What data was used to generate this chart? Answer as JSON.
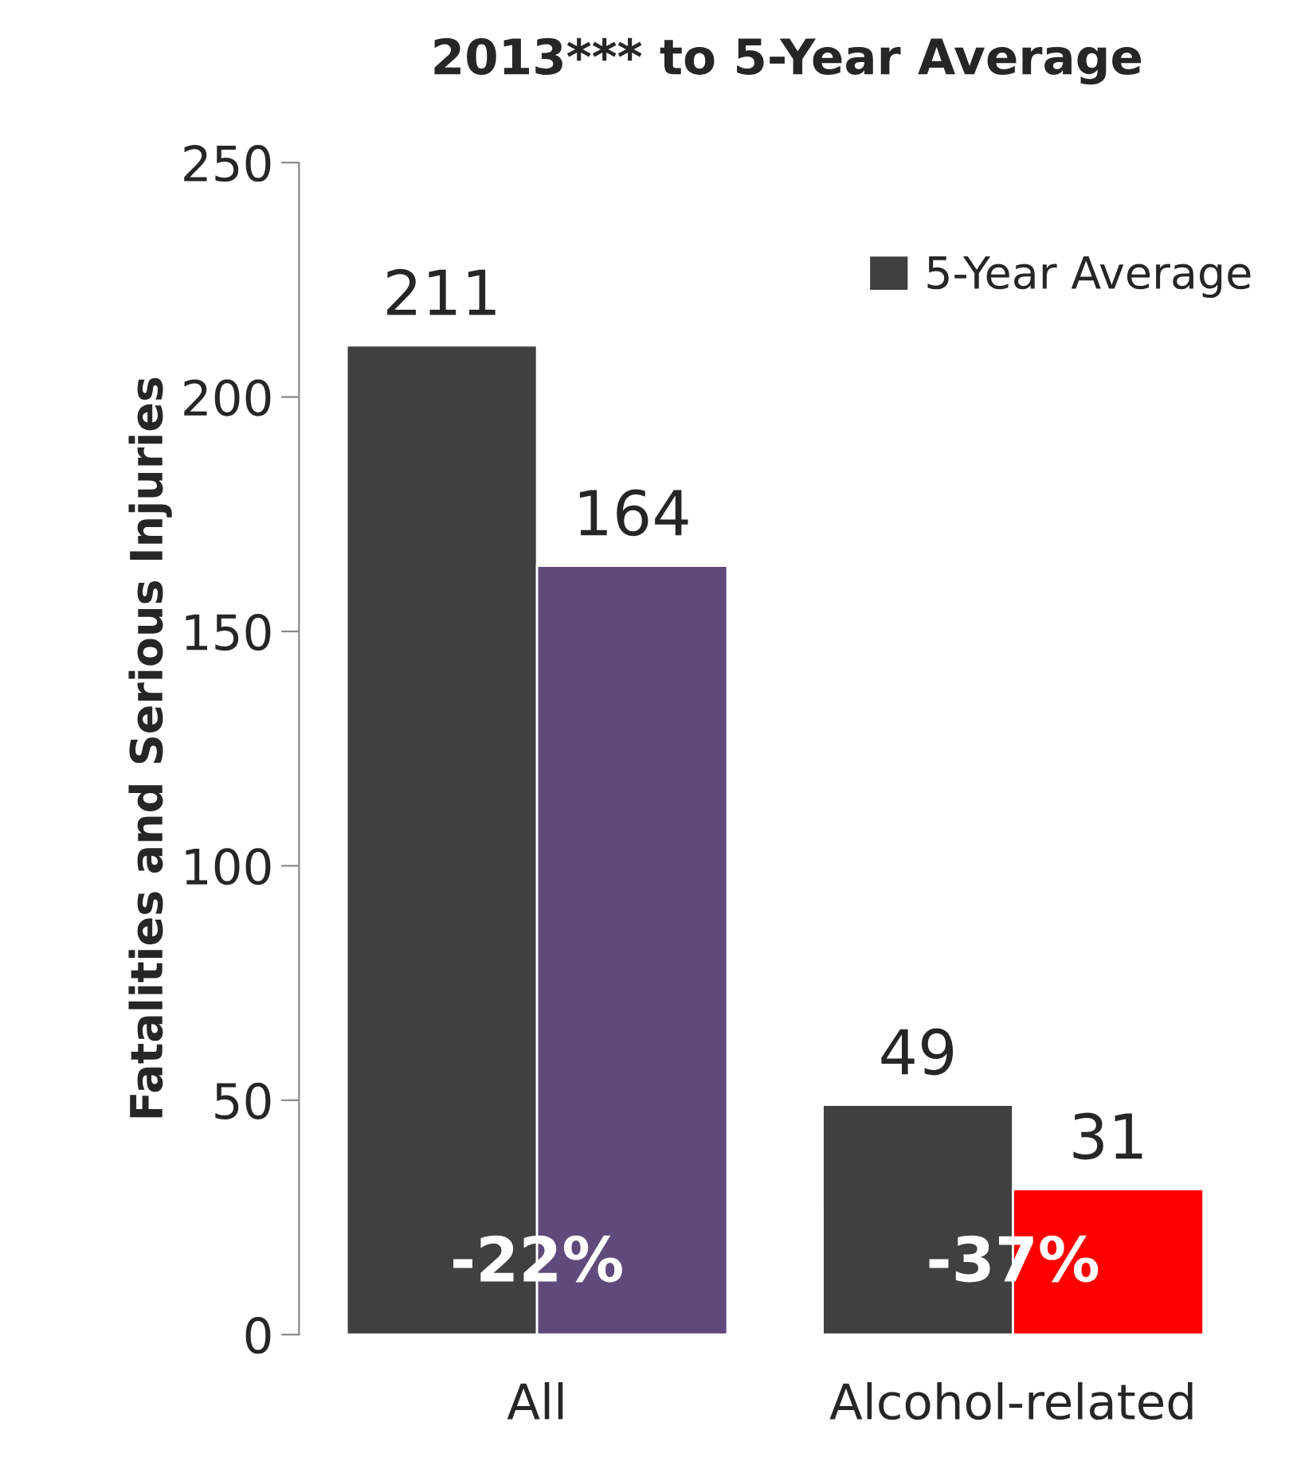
{
  "chart_data": {
    "type": "bar",
    "title": "2013*** to 5-Year Average",
    "ylabel": "Fatalities and Serious Injuries",
    "categories": [
      "All",
      "Alcohol-related"
    ],
    "series": [
      {
        "name": "5-Year Average",
        "color": "#404040",
        "values": [
          211,
          49
        ]
      },
      {
        "colors": [
          "#604a7b",
          "#ff0000"
        ],
        "values": [
          164,
          31
        ]
      }
    ],
    "ylim": [
      0,
      250
    ],
    "yticks": [
      0,
      50,
      100,
      150,
      200,
      250
    ],
    "data_labels": true,
    "legend": "top right",
    "grid": false,
    "annotations": [
      {
        "text": "-22%",
        "x": "All",
        "y": 15
      },
      {
        "text": "-37%",
        "x": "Alcohol-related",
        "y": 15
      }
    ]
  }
}
